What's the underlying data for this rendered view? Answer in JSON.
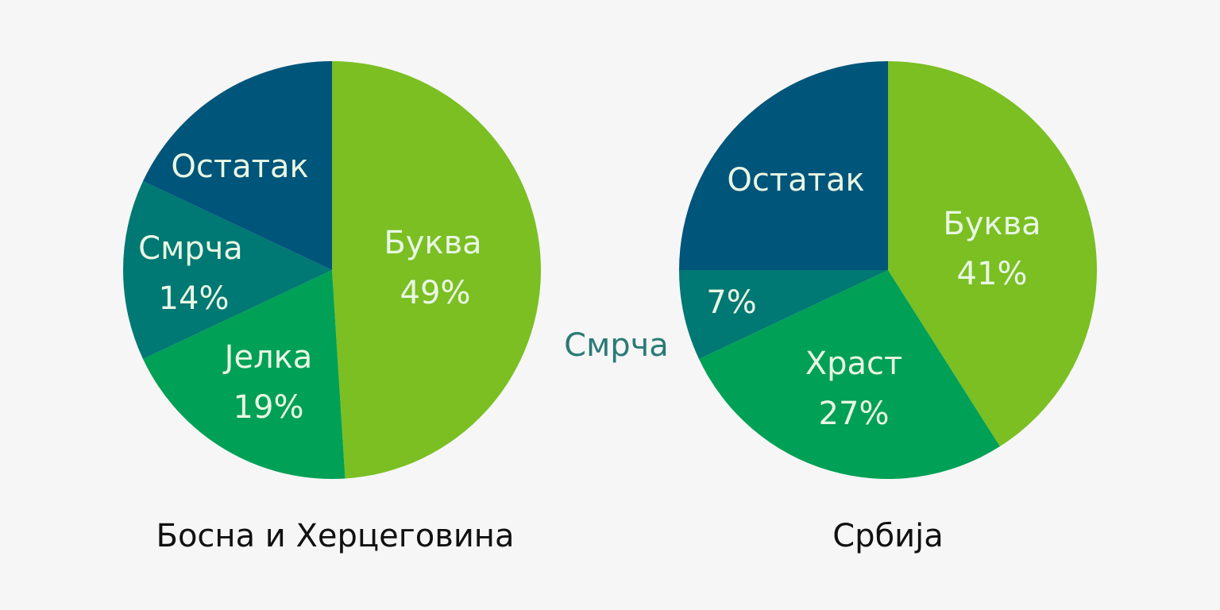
{
  "colors": {
    "background": "#f6f6f6",
    "bukva": "#7bbf23",
    "zelena": "#00a056",
    "smrca": "#007873",
    "ostatak": "#00557a",
    "label_light": "#e9f7e4",
    "label_outside": "#2a7a76"
  },
  "chart_data": [
    {
      "type": "pie",
      "title": "Босна и Херцеговина",
      "slices": [
        {
          "label": "Буква",
          "value": 49,
          "value_label": "49%",
          "color": "#7bbf23"
        },
        {
          "label": "Јелка",
          "value": 19,
          "value_label": "19%",
          "color": "#00a056"
        },
        {
          "label": "Смрча",
          "value": 14,
          "value_label": "14%",
          "color": "#007873"
        },
        {
          "label": "Остатак",
          "value": 18,
          "value_label": "",
          "color": "#00557a"
        }
      ]
    },
    {
      "type": "pie",
      "title": "Србија",
      "slices": [
        {
          "label": "Буква",
          "value": 41,
          "value_label": "41%",
          "color": "#7bbf23"
        },
        {
          "label": "Храст",
          "value": 27,
          "value_label": "27%",
          "color": "#00a056"
        },
        {
          "label": "Смрча",
          "value": 7,
          "value_label": "7%",
          "color": "#007873"
        },
        {
          "label": "Остатак",
          "value": 25,
          "value_label": "",
          "color": "#00557a"
        }
      ]
    }
  ]
}
